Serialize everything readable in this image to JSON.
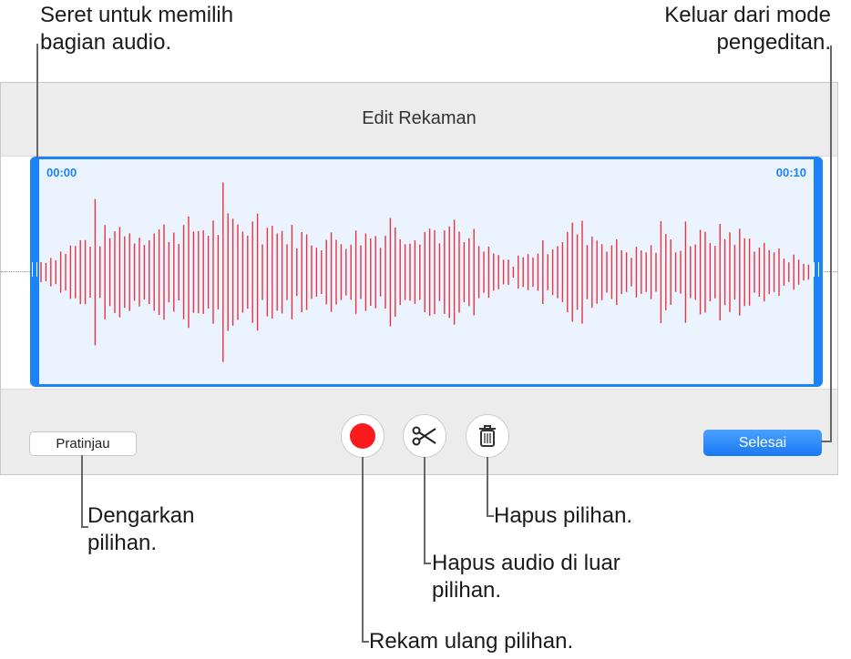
{
  "window": {
    "title": "Edit Rekaman",
    "selection_start": "00:00",
    "selection_end": "00:10",
    "preview_button": "Pratinjau",
    "done_button": "Selesai",
    "record_icon": "record-icon",
    "trim_icon": "scissors-icon",
    "delete_icon": "trash-icon",
    "accent_color": "#1a82fb",
    "waveform_color": "#e8343f"
  },
  "callouts": {
    "drag": "Seret untuk memilih bagian audio.",
    "exit": "Keluar dari mode pengeditan.",
    "listen": "Dengarkan pilihan.",
    "delete": "Hapus pilihan.",
    "trim": "Hapus audio di luar pilihan.",
    "record": "Rekam ulang pilihan."
  }
}
